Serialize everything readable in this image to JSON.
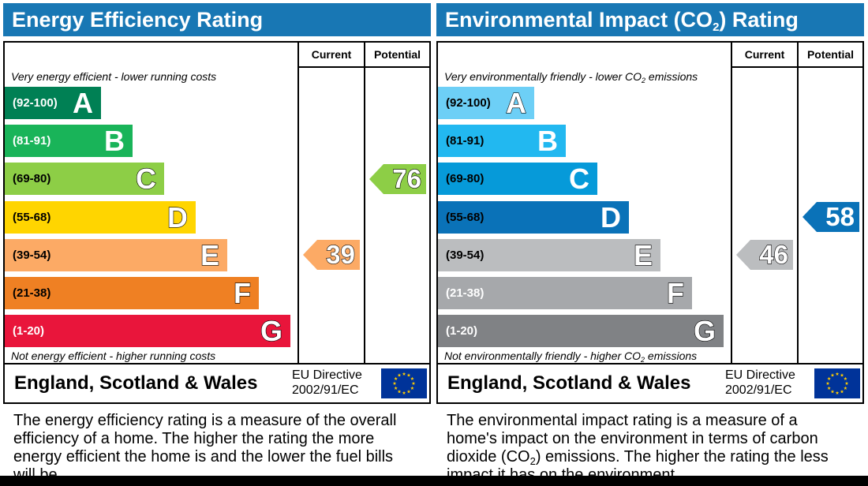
{
  "energy": {
    "title": "Energy Efficiency Rating",
    "col_current": "Current",
    "col_potential": "Potential",
    "top_note": "Very energy efficient - lower running costs",
    "bottom_note": "Not energy efficient - higher running costs",
    "bands": [
      {
        "range": "(92-100)",
        "letter": "A",
        "color": "#008054"
      },
      {
        "range": "(81-91)",
        "letter": "B",
        "color": "#19b459"
      },
      {
        "range": "(69-80)",
        "letter": "C",
        "color": "#8dce46"
      },
      {
        "range": "(55-68)",
        "letter": "D",
        "color": "#ffd500"
      },
      {
        "range": "(39-54)",
        "letter": "E",
        "color": "#fcaa65"
      },
      {
        "range": "(21-38)",
        "letter": "F",
        "color": "#ef8023"
      },
      {
        "range": "(1-20)",
        "letter": "G",
        "color": "#e9153b"
      }
    ],
    "current": {
      "value": "39",
      "band": "E",
      "color": "#fcaa65"
    },
    "potential": {
      "value": "76",
      "band": "C",
      "color": "#8dce46"
    },
    "region": "England, Scotland & Wales",
    "directive_line1": "EU Directive",
    "directive_line2": "2002/91/EC",
    "description": "The energy efficiency rating is a measure of the overall efficiency of a home. The higher the rating the more energy efficient the home is and the lower the fuel bills will be."
  },
  "environment": {
    "title_pre": "Environmental Impact (CO",
    "title_sub": "2",
    "title_post": ") Rating",
    "col_current": "Current",
    "col_potential": "Potential",
    "top_note_pre": "Very environmentally friendly - lower CO",
    "top_note_sub": "2",
    "top_note_post": " emissions",
    "bottom_note_pre": "Not environmentally friendly - higher CO",
    "bottom_note_sub": "2",
    "bottom_note_post": " emissions",
    "bands": [
      {
        "range": "(92-100)",
        "letter": "A",
        "color": "#6dcff6"
      },
      {
        "range": "(81-91)",
        "letter": "B",
        "color": "#22b8f0"
      },
      {
        "range": "(69-80)",
        "letter": "C",
        "color": "#069ad9"
      },
      {
        "range": "(55-68)",
        "letter": "D",
        "color": "#0a72b8"
      },
      {
        "range": "(39-54)",
        "letter": "E",
        "color": "#bbbdbf"
      },
      {
        "range": "(21-38)",
        "letter": "F",
        "color": "#a6a8ab"
      },
      {
        "range": "(1-20)",
        "letter": "G",
        "color": "#808285"
      }
    ],
    "current": {
      "value": "46",
      "band": "E",
      "color": "#bbbdbf"
    },
    "potential": {
      "value": "58",
      "band": "D",
      "color": "#0a72b8"
    },
    "region": "England, Scotland & Wales",
    "directive_line1": "EU Directive",
    "directive_line2": "2002/91/EC",
    "desc_pre": "The environmental impact rating is a measure of a home's impact on the environment in terms of carbon dioxide (CO",
    "desc_sub": "2",
    "desc_post": ") emissions. The higher the rating the less impact it has on the environment."
  },
  "icons": {
    "flag": "eu-flag-icon"
  }
}
